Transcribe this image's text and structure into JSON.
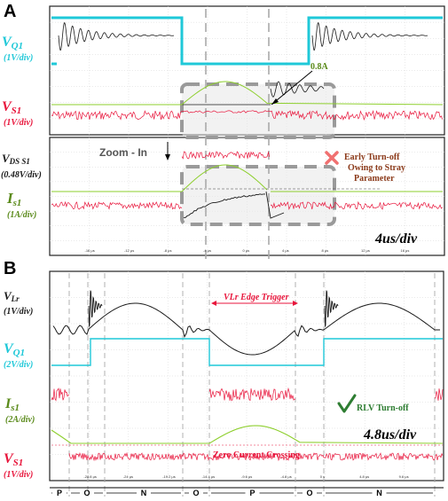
{
  "colors": {
    "cyan": "#1fc8d8",
    "red": "#e8163c",
    "green": "#8ecf2e",
    "green_text": "#5a8a1a",
    "black": "#1a1a1a",
    "brown": "#8b3a1a",
    "gray_box": "#9a9a9a",
    "check": "#2e7d32",
    "cross": "#f07070"
  },
  "panel_a": {
    "letter": "A",
    "labels": {
      "vq1": "V",
      "vq1_sub": "Q1",
      "vq1_scale": "(1V/div)",
      "vs1": "V",
      "vs1_sub": "S1",
      "vs1_scale": "(1V/div)",
      "vds": "V",
      "vds_sub": "DS S1",
      "vds_scale": "(0.48V/div)",
      "is1": "I",
      "is1_sub": "s1",
      "is1_scale": "(1A/div)"
    },
    "annotation_current": "0.8A",
    "zoom_text": "Zoom - In",
    "early_note": [
      "Early Turn-off",
      "Owing to Stray",
      "Parameter"
    ],
    "time_div": "4us/div",
    "ticks": [
      "-16 μs",
      "-12 μs",
      "-8 μs",
      "-4 μs",
      "0 μs",
      "4 μs",
      "8 μs",
      "12 μs",
      "16 μs"
    ]
  },
  "panel_b": {
    "letter": "B",
    "labels": {
      "vlr": "V",
      "vlr_sub": "Lr",
      "vlr_scale": "(1V/div)",
      "vq1": "V",
      "vq1_sub": "Q1",
      "vq1_scale": "(2V/div)",
      "is1": "I",
      "is1_sub": "s1",
      "is1_scale": "(2A/div)",
      "vs1": "V",
      "vs1_sub": "S1",
      "vs1_scale": "(1V/div)"
    },
    "edge_trigger": "VLr Edge Trigger",
    "rlv_note": "RLV Turn-off",
    "zero_crossing": "Zero Current Crossing",
    "time_div": "4.8us/div",
    "ticks": [
      "-28.8 μs",
      "-24 μs",
      "-19.2 μs",
      "-14.4 μs",
      "-9.6 μs",
      "-4.8 μs",
      "0 s",
      "4.8 μs",
      "9.6 μs"
    ],
    "segments": [
      "P",
      "O",
      "N",
      "O",
      "P",
      "O",
      "N"
    ]
  },
  "chart_data": [
    {
      "type": "line",
      "title": "",
      "panel": "A",
      "time_per_div": "4us/div",
      "series": [
        {
          "name": "VQ1",
          "unit": "1V/div",
          "description_levels": [
            "high",
            "ringing",
            "low",
            "high"
          ]
        },
        {
          "name": "VS1",
          "unit": "1V/div"
        },
        {
          "name": "VDS S1",
          "unit": "0.48V/div"
        },
        {
          "name": "IS1",
          "unit": "1A/div",
          "peak_annotation": "0.8A"
        }
      ],
      "annotations": [
        "0.8A",
        "Zoom - In",
        "Early Turn-off Owing to Stray Parameter"
      ]
    },
    {
      "type": "line",
      "title": "",
      "panel": "B",
      "time_per_div": "4.8us/div",
      "series": [
        {
          "name": "VLr",
          "unit": "1V/div"
        },
        {
          "name": "VQ1",
          "unit": "2V/div"
        },
        {
          "name": "IS1",
          "unit": "2A/div"
        },
        {
          "name": "VS1",
          "unit": "1V/div"
        }
      ],
      "annotations": [
        "VLr Edge Trigger",
        "RLV Turn-off",
        "Zero Current Crossing"
      ],
      "segments": [
        "P",
        "O",
        "N",
        "O",
        "P",
        "O",
        "N"
      ]
    }
  ]
}
